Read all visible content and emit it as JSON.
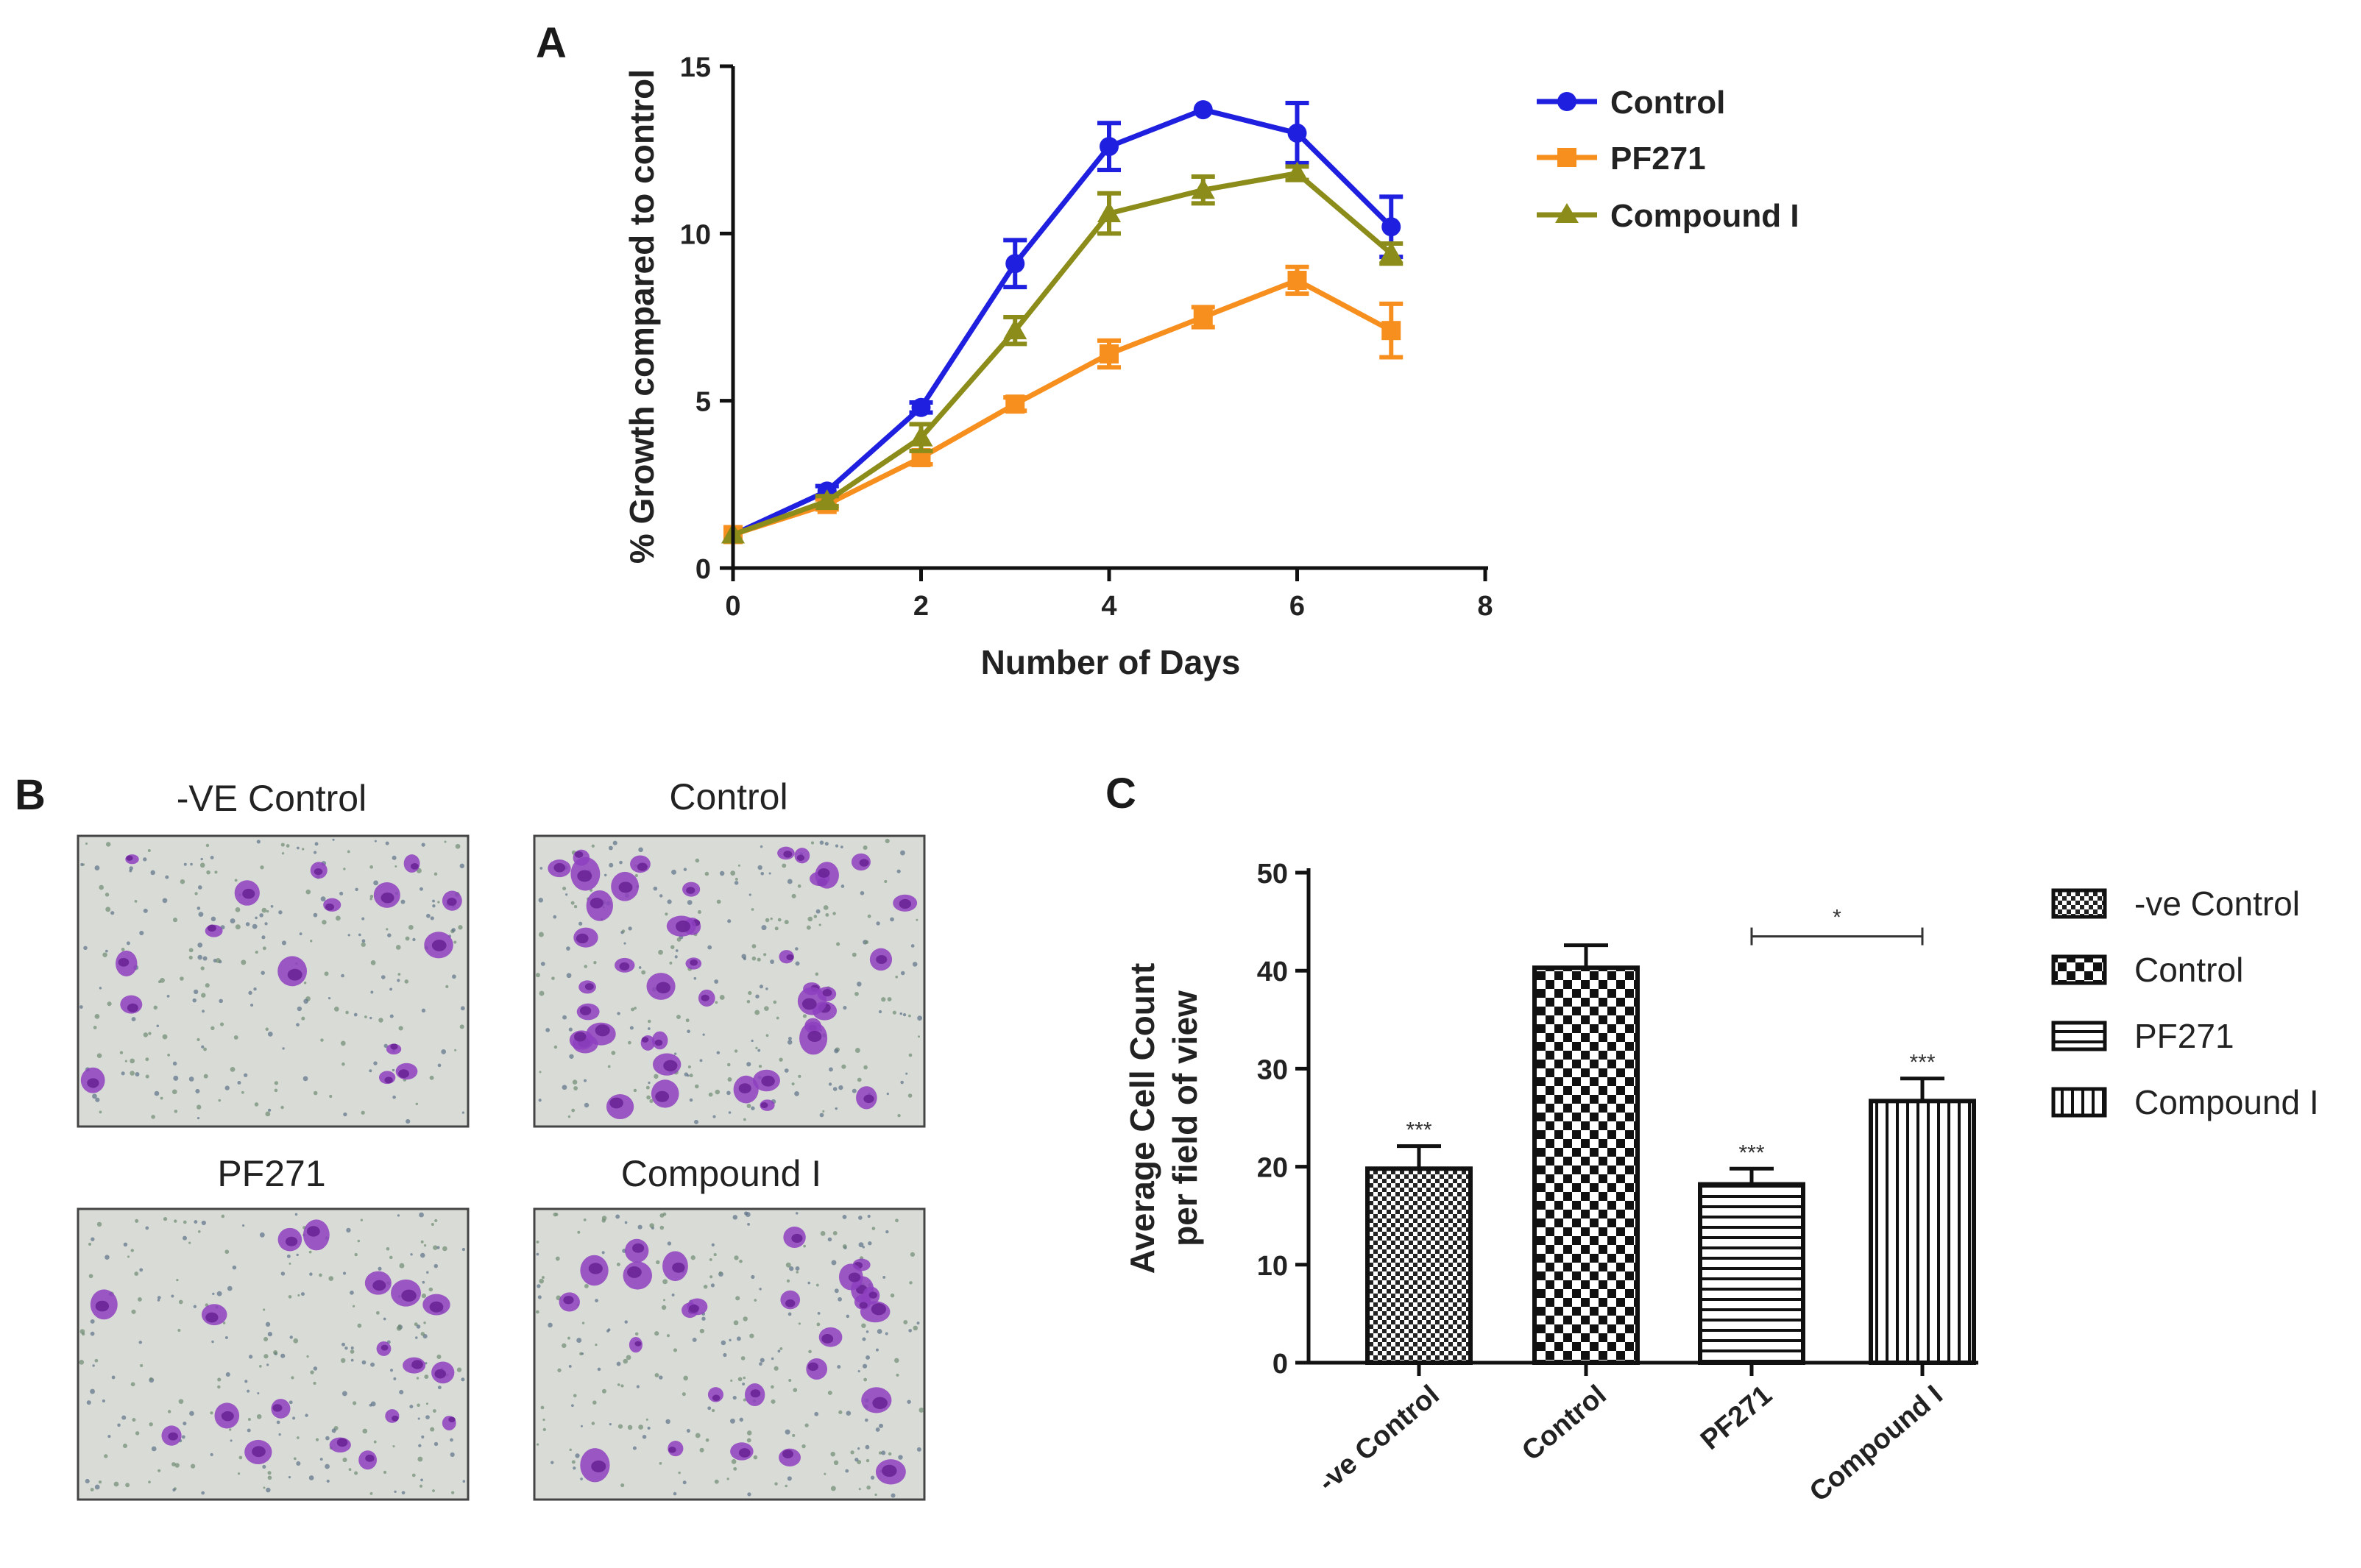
{
  "panels": {
    "a": {
      "letter": "A"
    },
    "b": {
      "letter": "B"
    },
    "c": {
      "letter": "C"
    }
  },
  "colors": {
    "control": "#1f1fe0",
    "pf271": "#f78f1e",
    "compound_i": "#8c8c1a",
    "micro_bg": "#d9dcd6",
    "micro_cell": "#8e3fbf"
  },
  "chart_data": [
    {
      "type": "line",
      "panel": "A",
      "title": "",
      "xlabel": "Number of Days",
      "ylabel": "% Growth compared to control",
      "xlim": [
        0,
        8
      ],
      "ylim": [
        0,
        15
      ],
      "xticks": [
        0,
        2,
        4,
        6,
        8
      ],
      "yticks": [
        0,
        5,
        10,
        15
      ],
      "x": [
        0,
        1,
        2,
        3,
        4,
        5,
        6,
        7
      ],
      "legend_position": "top-right",
      "series": [
        {
          "name": "Control",
          "color_key": "control",
          "marker": "circle",
          "values": [
            1.0,
            2.3,
            4.8,
            9.1,
            12.6,
            13.7,
            13.0,
            10.2
          ],
          "errors": [
            0.1,
            0.15,
            0.15,
            0.7,
            0.7,
            0.1,
            0.9,
            0.9
          ]
        },
        {
          "name": "PF271",
          "color_key": "pf271",
          "marker": "square",
          "values": [
            1.0,
            1.9,
            3.3,
            4.9,
            6.4,
            7.5,
            8.6,
            7.1
          ],
          "errors": [
            0.1,
            0.15,
            0.2,
            0.2,
            0.4,
            0.3,
            0.4,
            0.8
          ]
        },
        {
          "name": "Compound I",
          "color_key": "compound_i",
          "marker": "triangle",
          "values": [
            1.0,
            2.0,
            3.9,
            7.1,
            10.6,
            11.3,
            11.8,
            9.4
          ],
          "errors": [
            0.1,
            0.15,
            0.4,
            0.4,
            0.6,
            0.4,
            0.2,
            0.3
          ]
        }
      ]
    },
    {
      "type": "bar",
      "panel": "C",
      "title": "",
      "xlabel": "",
      "ylabel_line1": "Average Cell Count",
      "ylabel_line2": "per field of view",
      "ylim": [
        0,
        50
      ],
      "yticks": [
        0,
        10,
        20,
        30,
        40,
        50
      ],
      "categories": [
        "-ve Control",
        "Control",
        "PF271",
        "Compound I"
      ],
      "values": [
        19.8,
        40.3,
        18.2,
        26.7
      ],
      "errors": [
        2.3,
        2.3,
        1.6,
        2.3
      ],
      "significance": [
        "***",
        "",
        "***",
        "***"
      ],
      "patterns": [
        "fine-check",
        "checker",
        "horizontal-lines",
        "vertical-lines"
      ],
      "comparison": {
        "from": "PF271",
        "to": "Compound I",
        "label": "*",
        "y": 43.5
      },
      "legend": [
        "-ve Control",
        "Control",
        "PF271",
        "Compound I"
      ],
      "legend_position": "right"
    }
  ],
  "micrographs": [
    {
      "label": "-VE Control"
    },
    {
      "label": "Control"
    },
    {
      "label": "PF271"
    },
    {
      "label": "Compound I"
    }
  ]
}
